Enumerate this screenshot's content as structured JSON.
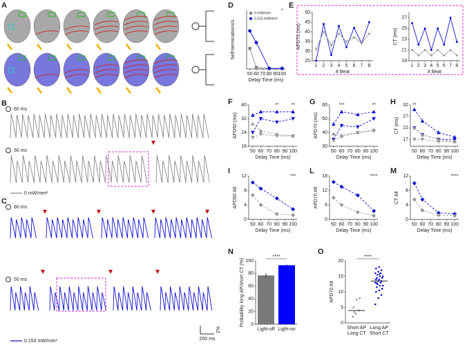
{
  "panels": [
    "A",
    "B",
    "C",
    "D",
    "E",
    "F",
    "G",
    "H",
    "I",
    "L",
    "M",
    "N",
    "O"
  ],
  "traces": {
    "B": {
      "top": "60 ms",
      "bottom": "50 ms",
      "legend": "0 mW/mm²"
    },
    "C": {
      "top": "60 ms",
      "bottom": "50 ms",
      "legend": "0.153 mW/mm²",
      "scale_x": "200 ms",
      "scale_y": "2%"
    }
  },
  "chart_data": [
    {
      "type": "line",
      "ylabel": "Self-terminations/s",
      "xlabel": "Delay Time (ms)",
      "x": [
        50,
        60,
        80,
        100
      ],
      "xlim": [
        45,
        105
      ],
      "xticks": [
        50,
        60,
        70,
        80,
        90,
        100
      ],
      "ylim": [
        0,
        2
      ],
      "legend": "top-left",
      "series": [
        {
          "name": "0 mW/mm²",
          "color": "#888888",
          "marker": "square",
          "values": [
            0.7,
            0.05,
            0.02,
            0.02
          ]
        },
        {
          "name": "0.153 mW/mm²",
          "color": "#1010d0",
          "marker": "diamond",
          "values": [
            1.3,
            0.9,
            0.02,
            0.02
          ]
        }
      ],
      "annotations": [
        {
          "text": "*",
          "x": 100
        }
      ]
    },
    {
      "type": "line",
      "ylabel": "APD70 (ms)",
      "xlabel": "# Beat",
      "x": [
        1,
        2,
        3,
        4,
        5,
        6,
        7,
        8
      ],
      "xlim": [
        0.5,
        8.5
      ],
      "xticks": [
        1,
        2,
        3,
        4,
        5,
        6,
        7,
        8
      ],
      "ylim": [
        25,
        50
      ],
      "yticks": [
        25,
        30,
        35,
        40,
        45,
        50
      ],
      "series": [
        {
          "color": "#1010d0",
          "marker": "dot",
          "values": [
            25,
            44,
            28,
            43,
            32,
            42,
            34,
            45
          ]
        },
        {
          "color": "#999999",
          "marker": "dot",
          "values": [
            31,
            40,
            33,
            39,
            35,
            37,
            34,
            39
          ]
        }
      ]
    },
    {
      "type": "line",
      "ylabel": "CT (ms)",
      "xlabel": "# Beat",
      "x": [
        1,
        2,
        3,
        4,
        5,
        6,
        7,
        8
      ],
      "xlim": [
        0.5,
        8.5
      ],
      "xticks": [
        1,
        2,
        3,
        4,
        5,
        6,
        7,
        8
      ],
      "ylim": [
        19,
        28
      ],
      "yticks": [
        19,
        21,
        23,
        25,
        27
      ],
      "series": [
        {
          "color": "#1010d0",
          "marker": "dot",
          "values": [
            26,
            22,
            25,
            21,
            25,
            22,
            27,
            22.5
          ]
        },
        {
          "color": "#999999",
          "marker": "dot",
          "values": [
            21,
            20,
            21,
            20,
            21,
            20,
            21,
            20
          ]
        }
      ]
    },
    {
      "type": "line",
      "ylabel": "APD50 (ms)",
      "xlabel": "Delay Time (ms)",
      "x": [
        50,
        60,
        80,
        100
      ],
      "xlim": [
        45,
        105
      ],
      "xticks": [
        50,
        60,
        70,
        80,
        90,
        100
      ],
      "ylim": [
        16,
        40
      ],
      "yticks": [
        16,
        24,
        32,
        40
      ],
      "series": [
        {
          "color": "#1010d0",
          "marker": "triangle-up",
          "dash": true,
          "values": [
            34,
            36,
            36,
            36
          ]
        },
        {
          "color": "#1010d0",
          "marker": "triangle-down",
          "dash": true,
          "values": [
            24,
            32,
            30,
            32
          ]
        },
        {
          "color": "#999999",
          "marker": "triangle-up",
          "dash": true,
          "values": [
            29,
            25,
            23,
            22
          ]
        },
        {
          "color": "#999999",
          "marker": "triangle-down",
          "dash": true,
          "values": [
            21,
            23,
            22,
            22
          ]
        }
      ],
      "annotations": [
        {
          "text": "**",
          "x": 80
        },
        {
          "text": "**",
          "x": 100
        }
      ]
    },
    {
      "type": "line",
      "ylabel": "APD70 (ms)",
      "xlabel": "Delay Time (ms)",
      "x": [
        50,
        60,
        80,
        100
      ],
      "xlim": [
        45,
        105
      ],
      "xticks": [
        50,
        60,
        70,
        80,
        90,
        100
      ],
      "ylim": [
        30,
        60
      ],
      "yticks": [
        30,
        40,
        50,
        60
      ],
      "series": [
        {
          "color": "#1010d0",
          "marker": "triangle-up",
          "dash": true,
          "values": [
            46,
            55,
            53,
            55
          ]
        },
        {
          "color": "#1010d0",
          "marker": "triangle-down",
          "dash": true,
          "values": [
            35,
            45,
            44,
            50
          ]
        },
        {
          "color": "#999999",
          "marker": "triangle-up",
          "dash": true,
          "values": [
            39,
            38,
            40,
            42
          ]
        },
        {
          "color": "#999999",
          "marker": "triangle-down",
          "dash": true,
          "values": [
            34,
            37,
            40,
            41
          ]
        }
      ],
      "annotations": [
        {
          "text": "***",
          "x": 60
        },
        {
          "text": "**",
          "x": 100
        }
      ]
    },
    {
      "type": "line",
      "ylabel": "CT (ms)",
      "xlabel": "Delay Time (ms)",
      "x": [
        50,
        60,
        80,
        100
      ],
      "xlim": [
        45,
        105
      ],
      "xticks": [
        50,
        60,
        70,
        80,
        90,
        100
      ],
      "ylim": [
        14,
        32
      ],
      "yticks": [
        17,
        22,
        27,
        32
      ],
      "series": [
        {
          "color": "#1010d0",
          "marker": "triangle-up",
          "dash": true,
          "values": [
            30,
            25,
            20,
            18
          ]
        },
        {
          "color": "#1010d0",
          "marker": "triangle-down",
          "dash": true,
          "values": [
            22,
            19,
            17,
            17
          ]
        },
        {
          "color": "#999999",
          "marker": "triangle-up",
          "dash": true,
          "values": [
            22,
            19,
            17,
            16
          ]
        },
        {
          "color": "#999999",
          "marker": "triangle-down",
          "dash": true,
          "values": [
            17,
            17,
            16,
            16
          ]
        }
      ],
      "annotations": [
        {
          "text": "**",
          "x": 50
        }
      ]
    },
    {
      "type": "line",
      "ylabel": "APD50 Alt",
      "xlabel": "Delay Time (ms)",
      "x": [
        50,
        60,
        80,
        100
      ],
      "xlim": [
        45,
        105
      ],
      "xticks": [
        50,
        60,
        70,
        80,
        90,
        100
      ],
      "ylim": [
        0,
        12
      ],
      "yticks": [
        0,
        4,
        8,
        12
      ],
      "series": [
        {
          "color": "#1010d0",
          "marker": "diamond",
          "dash": true,
          "values": [
            10.2,
            8.5,
            5.8,
            2.8
          ]
        },
        {
          "color": "#999999",
          "marker": "diamond",
          "dash": true,
          "values": [
            6.7,
            4,
            1.5,
            1.2
          ]
        }
      ],
      "annotations": [
        {
          "text": "***",
          "x": 100
        }
      ]
    },
    {
      "type": "line",
      "ylabel": "APD70 Alt",
      "xlabel": "Delay Time (ms)",
      "x": [
        50,
        60,
        80,
        100
      ],
      "xlim": [
        45,
        105
      ],
      "xticks": [
        50,
        60,
        70,
        80,
        90,
        100
      ],
      "ylim": [
        0,
        18
      ],
      "yticks": [
        0,
        6,
        12,
        18
      ],
      "series": [
        {
          "color": "#1010d0",
          "marker": "diamond",
          "dash": true,
          "values": [
            15.5,
            13.5,
            10,
            3.5
          ]
        },
        {
          "color": "#999999",
          "marker": "diamond",
          "dash": true,
          "values": [
            9,
            6,
            3,
            1.5
          ]
        }
      ],
      "annotations": [
        {
          "text": "****",
          "x": 100
        }
      ]
    },
    {
      "type": "line",
      "ylabel": "CT Alt",
      "xlabel": "Delay Time (ms)",
      "x": [
        50,
        60,
        80,
        100
      ],
      "xlim": [
        45,
        105
      ],
      "xticks": [
        50,
        60,
        70,
        80,
        90,
        100
      ],
      "ylim": [
        0,
        12
      ],
      "yticks": [
        0,
        4,
        8,
        12
      ],
      "series": [
        {
          "color": "#1010d0",
          "marker": "diamond",
          "dash": true,
          "values": [
            10,
            5.5,
            1.8,
            1.5
          ]
        },
        {
          "color": "#999999",
          "marker": "diamond",
          "dash": true,
          "values": [
            5.5,
            2.5,
            1.2,
            1
          ]
        }
      ],
      "annotations": [
        {
          "text": "****",
          "x": 100
        }
      ]
    },
    {
      "type": "bar",
      "ylabel": "Probability long AP/short CT (%)",
      "categories": [
        "Light-off",
        "Light-on"
      ],
      "values": [
        77,
        93
      ],
      "errors": [
        3,
        1
      ],
      "colors": [
        "#7a7a7a",
        "#0000ff"
      ],
      "ylim": [
        0,
        100
      ],
      "yticks": [
        0,
        20,
        40,
        60,
        80,
        100
      ],
      "annotations": [
        {
          "text": "****"
        }
      ]
    },
    {
      "type": "strip",
      "ylabel": "APD70 Alt",
      "categories": [
        [
          "Short AP",
          "Long CT"
        ],
        [
          "Long AP",
          "Short CT"
        ]
      ],
      "ylim": [
        0,
        20
      ],
      "yticks": [
        0,
        5,
        10,
        15,
        20
      ],
      "means": [
        4,
        13.5
      ],
      "series": [
        {
          "color": "#888888",
          "values": [
            2,
            3,
            4,
            5,
            7.5,
            8,
            3.5
          ]
        },
        {
          "color": "#1010d0",
          "values": [
            6,
            8,
            9,
            10,
            10.5,
            11,
            11.5,
            12,
            12,
            12.5,
            13,
            13,
            13.5,
            13.5,
            14,
            14,
            14.5,
            14.5,
            15,
            15,
            15.5,
            16,
            16,
            16.5,
            17,
            17.5,
            18,
            11,
            12.8,
            15.8
          ]
        }
      ],
      "annotations": [
        {
          "text": "****"
        }
      ]
    }
  ]
}
